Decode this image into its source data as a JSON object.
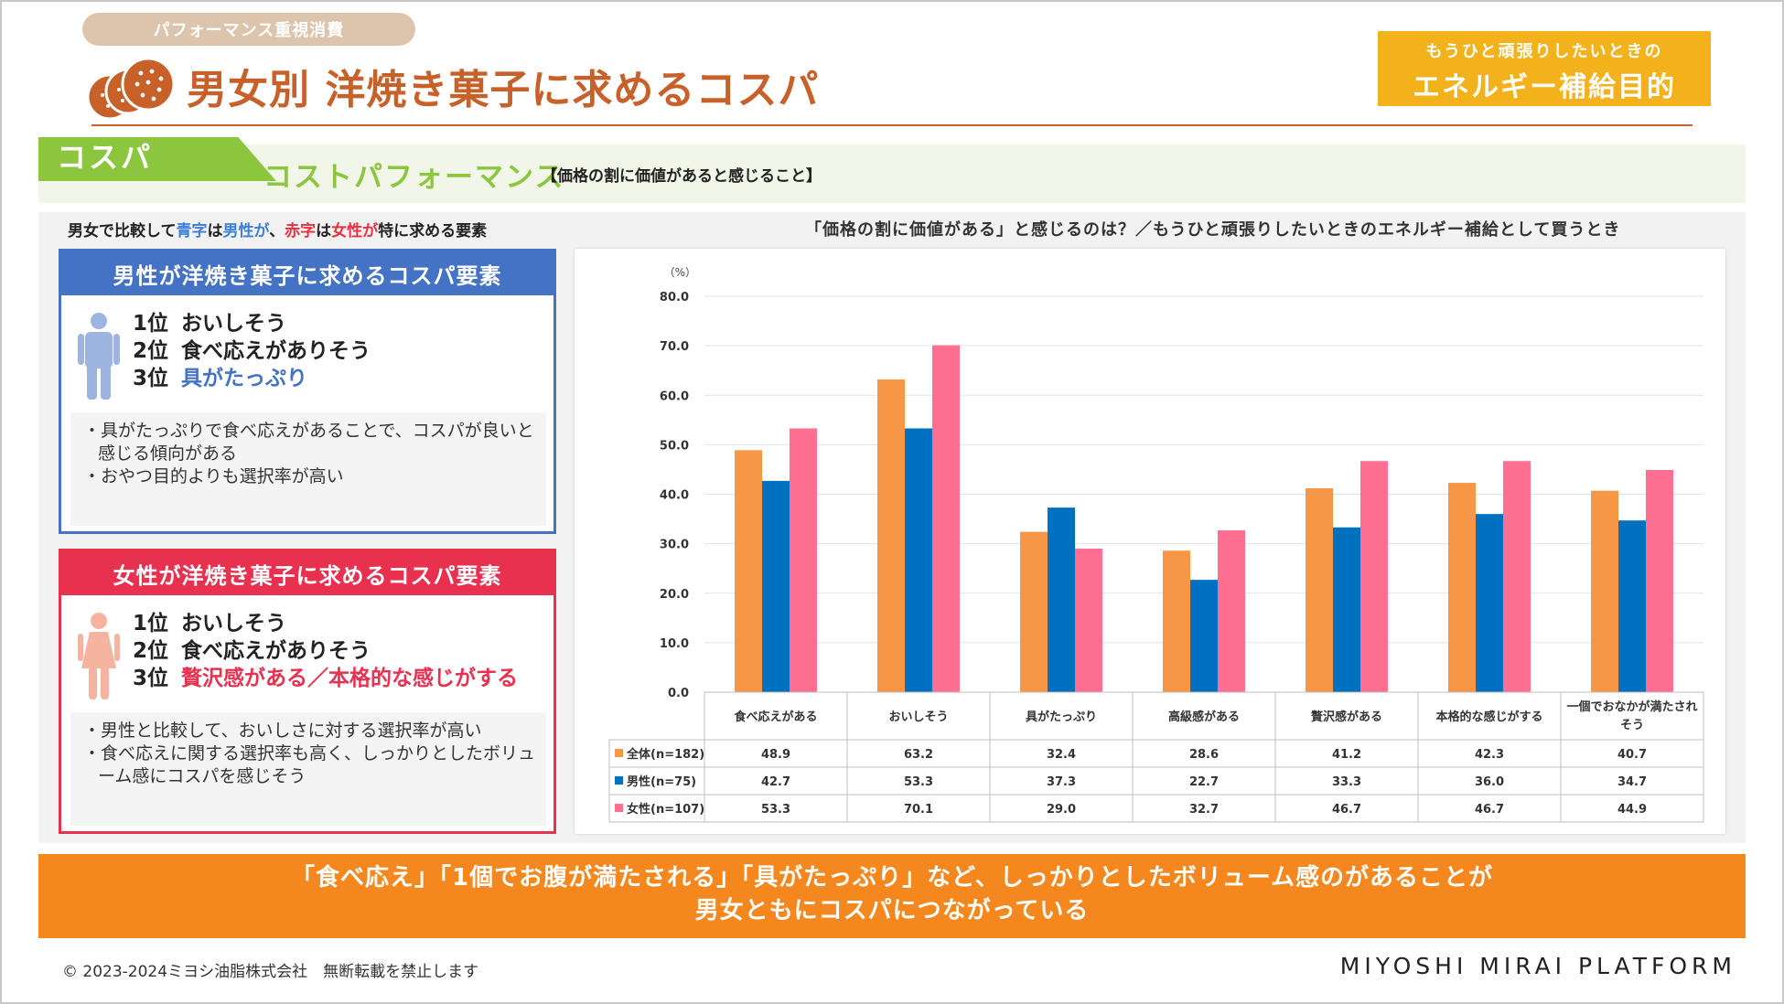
{
  "header": {
    "tag": "パフォーマンス重視消費",
    "title": "男女別 洋焼き菓子に求めるコスパ",
    "energy_sub": "もうひと頑張りしたいときの",
    "energy_main": "エネルギー補給目的"
  },
  "cospa": {
    "tab": "コスパ",
    "heading": "コストパフォーマンス",
    "description": "【価格の割に価値があると感じること】"
  },
  "compare_note": {
    "part1": "男女で比較して",
    "blue_word": "青字",
    "part2": "は",
    "men_word": "男性が",
    "part3": "、",
    "red_word": "赤字",
    "part4": "は",
    "women_word": "女性が",
    "part5": "特に求める要素"
  },
  "men_panel": {
    "title": "男性が洋焼き菓子に求めるコスパ要素",
    "ranks": [
      {
        "rank": "1位",
        "label": "おいしそう"
      },
      {
        "rank": "2位",
        "label": "食べ応えがありそう"
      },
      {
        "rank": "3位",
        "label": "具がたっぷり"
      }
    ],
    "notes": [
      "・具がたっぷりで食べ応えがあることで、コスパが良いと感じる傾向がある",
      "・おやつ目的よりも選択率が高い"
    ]
  },
  "women_panel": {
    "title": "女性が洋焼き菓子に求めるコスパ要素",
    "ranks": [
      {
        "rank": "1位",
        "label": "おいしそう"
      },
      {
        "rank": "2位",
        "label": "食べ応えがありそう"
      },
      {
        "rank": "3位",
        "label": "贅沢感がある／本格的な感じがする"
      }
    ],
    "notes": [
      "・男性と比較して、おいしさに対する選択率が高い",
      "・食べ応えに関する選択率も高く、しっかりとしたボリューム感にコスパを感じそう"
    ]
  },
  "chart_data": {
    "type": "bar",
    "title": "「価格の割に価値がある」と感じるのは？／もうひと頑張りしたいときのエネルギー補給として買うとき",
    "ylabel": "（%）",
    "ylim": [
      0,
      80
    ],
    "yticks": [
      "0.0",
      "10.0",
      "20.0",
      "30.0",
      "40.0",
      "50.0",
      "60.0",
      "70.0",
      "80.0"
    ],
    "grid": true,
    "categories": [
      "食べ応えがある",
      "おいしそう",
      "具がたっぷり",
      "高級感がある",
      "贅沢感がある",
      "本格的な感じがする",
      "一個でおなかが満たされそう"
    ],
    "series": [
      {
        "name": "全体(n=182)",
        "color": "#f79646",
        "values": [
          48.9,
          63.2,
          32.4,
          28.6,
          41.2,
          42.3,
          40.7
        ],
        "labels": [
          "48.9",
          "63.2",
          "32.4",
          "28.6",
          "41.2",
          "42.3",
          "40.7"
        ]
      },
      {
        "name": "男性(n=75)",
        "color": "#0070c0",
        "values": [
          42.7,
          53.3,
          37.3,
          22.7,
          33.3,
          36.0,
          34.7
        ],
        "labels": [
          "42.7",
          "53.3",
          "37.3",
          "22.7",
          "33.3",
          "36.0",
          "34.7"
        ]
      },
      {
        "name": "女性(n=107)",
        "color": "#ff6f91",
        "values": [
          53.3,
          70.1,
          29.0,
          32.7,
          46.7,
          46.7,
          44.9
        ],
        "labels": [
          "53.3",
          "70.1",
          "29.0",
          "32.7",
          "46.7",
          "46.7",
          "44.9"
        ]
      }
    ]
  },
  "conclusion": {
    "line1": "「食べ応え」「1個でお腹が満たされる」「具がたっぷり」など、しっかりとしたボリューム感のがあることが",
    "line2": "男女ともにコスパにつながっている"
  },
  "footer": {
    "copyright": "© 2023-2024ミヨシ油脂株式会社　無断転載を禁止します",
    "brand": "MIYOSHI MIRAI PLATFORM"
  },
  "colors": {
    "title": "#c8602a",
    "energy": "#f3b21b",
    "cospa_green": "#8cc63f",
    "men_blue": "#4472c4",
    "women_red": "#e8304f",
    "conclusion_orange": "#f5871f"
  }
}
